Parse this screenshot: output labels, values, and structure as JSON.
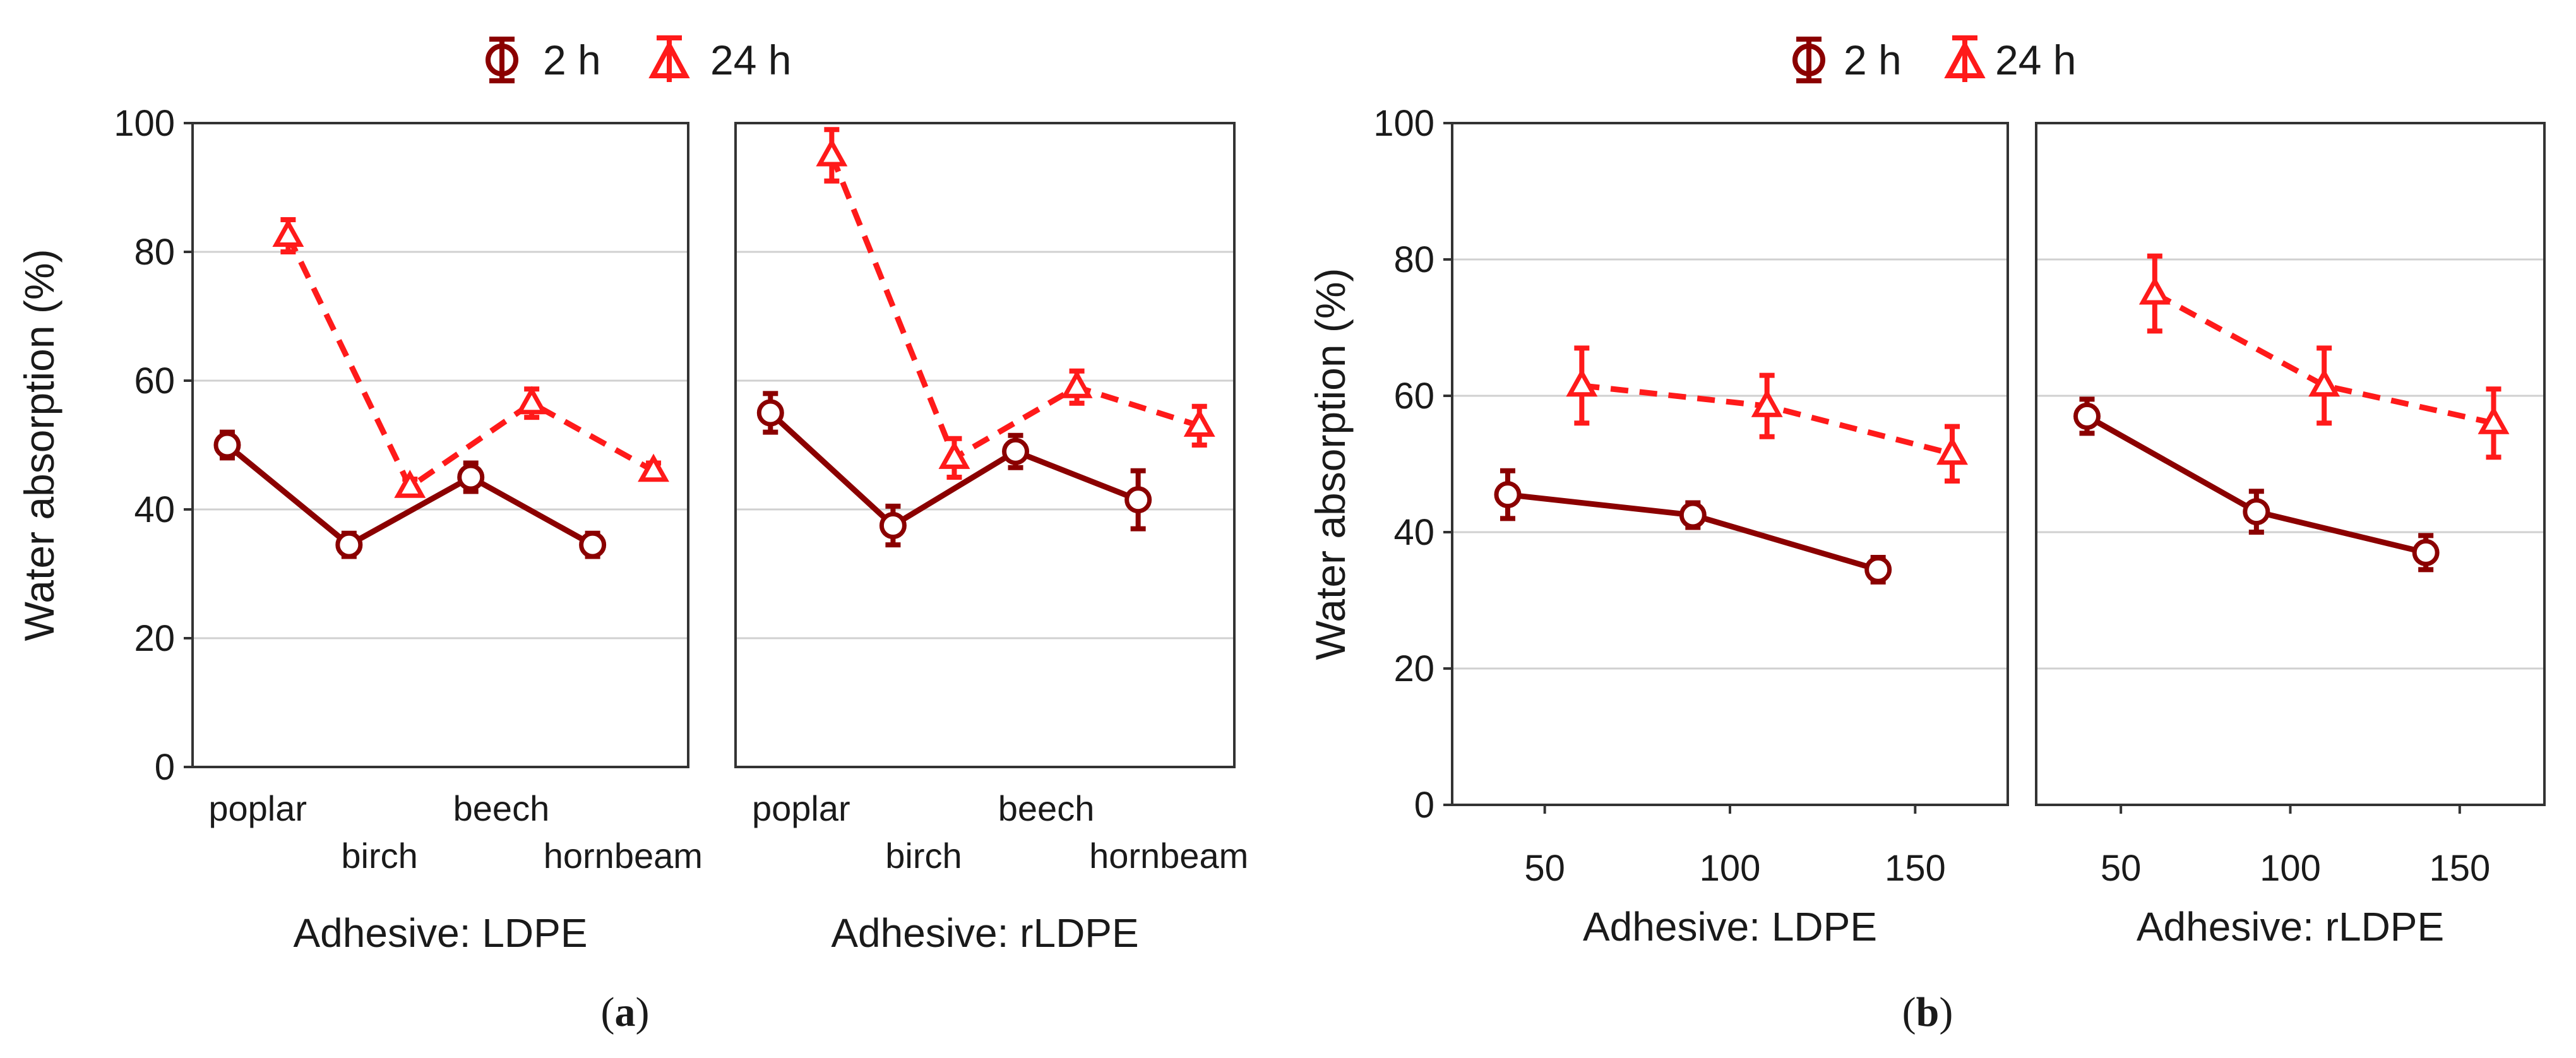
{
  "colors": {
    "h2": "#8b0000",
    "h24": "#ff1a1a",
    "grid": "#d0d0d0",
    "frame": "#333333"
  },
  "legend": {
    "h2_label": "2 h",
    "h24_label": "24 h"
  },
  "captions": {
    "a": "a",
    "b": "b"
  },
  "chart_data": [
    {
      "type": "line",
      "panel": "a-LDPE",
      "ylabel": "Water absorption  (%)",
      "xlabel": "Adhesive: LDPE",
      "ylim": [
        0,
        100
      ],
      "yticks": [
        0,
        20,
        40,
        60,
        80,
        100
      ],
      "categories": [
        "poplar",
        "birch",
        "beech",
        "hornbeam"
      ],
      "series": [
        {
          "name": "2 h",
          "values": [
            50,
            34.5,
            45,
            34.5
          ],
          "err": [
            2,
            1.8,
            2.2,
            1.8
          ]
        },
        {
          "name": "24 h",
          "values": [
            82.5,
            43.5,
            56.5,
            46
          ],
          "err": [
            2.5,
            1.2,
            2.2,
            1.2
          ]
        }
      ]
    },
    {
      "type": "line",
      "panel": "a-rLDPE",
      "xlabel": "Adhesive: rLDPE",
      "ylim": [
        0,
        100
      ],
      "categories": [
        "poplar",
        "birch",
        "beech",
        "hornbeam"
      ],
      "series": [
        {
          "name": "2 h",
          "values": [
            55,
            37.5,
            49,
            41.5
          ],
          "err": [
            3,
            3,
            2.5,
            4.5
          ]
        },
        {
          "name": "24 h",
          "values": [
            95,
            48,
            59,
            53
          ],
          "err": [
            4,
            3,
            2.5,
            3
          ]
        }
      ]
    },
    {
      "type": "line",
      "panel": "b-LDPE",
      "ylabel": "Water absorption (%)",
      "xlabel": "Adhesive: LDPE",
      "ylim": [
        0,
        100
      ],
      "yticks": [
        0,
        20,
        40,
        60,
        80,
        100
      ],
      "xlim": [
        25,
        175
      ],
      "xticks": [
        50,
        100,
        150
      ],
      "series": [
        {
          "name": "2 h",
          "x": [
            40,
            90,
            140
          ],
          "values": [
            45.5,
            42.5,
            34.5
          ],
          "err": [
            3.5,
            1.8,
            1.8
          ]
        },
        {
          "name": "24 h",
          "x": [
            60,
            110,
            160
          ],
          "values": [
            61.5,
            58.5,
            51.5
          ],
          "err": [
            5.5,
            4.5,
            4
          ]
        }
      ]
    },
    {
      "type": "line",
      "panel": "b-rLDPE",
      "xlabel": "Adhesive: rLDPE",
      "ylim": [
        0,
        100
      ],
      "xlim": [
        25,
        175
      ],
      "xticks": [
        50,
        100,
        150
      ],
      "series": [
        {
          "name": "2 h",
          "x": [
            40,
            90,
            140
          ],
          "values": [
            57,
            43,
            37
          ],
          "err": [
            2.5,
            3,
            2.5
          ]
        },
        {
          "name": "24 h",
          "x": [
            60,
            110,
            160
          ],
          "values": [
            75,
            61.5,
            56
          ],
          "err": [
            5.5,
            5.5,
            5
          ]
        }
      ]
    }
  ]
}
